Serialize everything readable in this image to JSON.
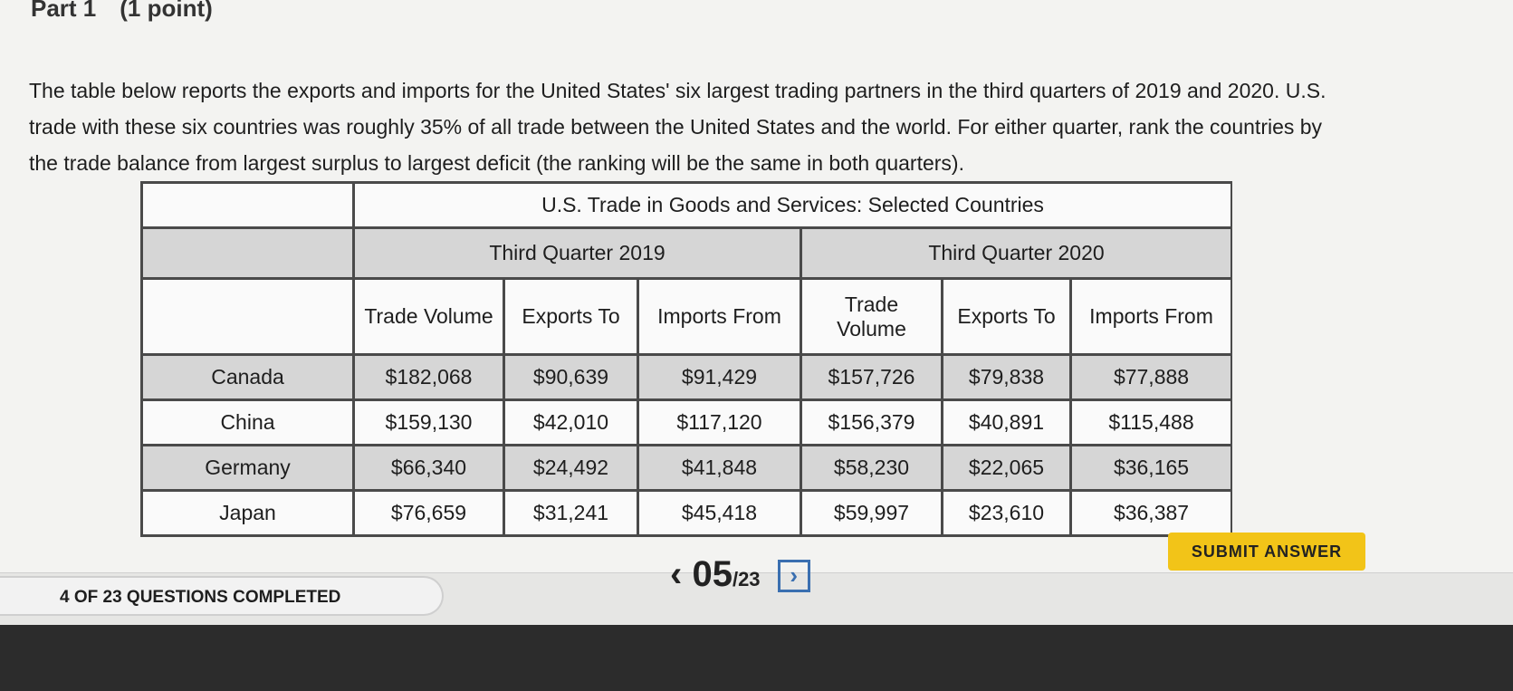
{
  "header": {
    "title": "Part 1",
    "points": "(1 point)"
  },
  "instructions": "The table below reports the exports and imports for the United States' six largest trading partners in the third quarters of 2019 and 2020. U.S. trade with these six countries was roughly 35% of all trade between the United States and the world. For either quarter, rank the countries by the trade balance from largest surplus to largest deficit (the ranking will be the same in both quarters).",
  "table": {
    "caption": "U.S. Trade in Goods and Services: Selected Countries",
    "groups": [
      "Third Quarter 2019",
      "Third Quarter 2020"
    ],
    "columns": [
      "Trade Volume",
      "Exports To",
      "Imports From",
      "Trade Volume",
      "Exports To",
      "Imports From"
    ],
    "rows": [
      [
        "Canada",
        "$182,068",
        "$90,639",
        "$91,429",
        "$157,726",
        "$79,838",
        "$77,888"
      ],
      [
        "China",
        "$159,130",
        "$42,010",
        "$117,120",
        "$156,379",
        "$40,891",
        "$115,488"
      ],
      [
        "Germany",
        "$66,340",
        "$24,492",
        "$41,848",
        "$58,230",
        "$22,065",
        "$36,165"
      ],
      [
        "Japan",
        "$76,659",
        "$31,241",
        "$45,418",
        "$59,997",
        "$23,610",
        "$36,387"
      ]
    ]
  },
  "footer": {
    "progress": "4 OF 23 QUESTIONS COMPLETED",
    "page_current": "05",
    "page_total": "/23",
    "submit": "SUBMIT ANSWER"
  }
}
